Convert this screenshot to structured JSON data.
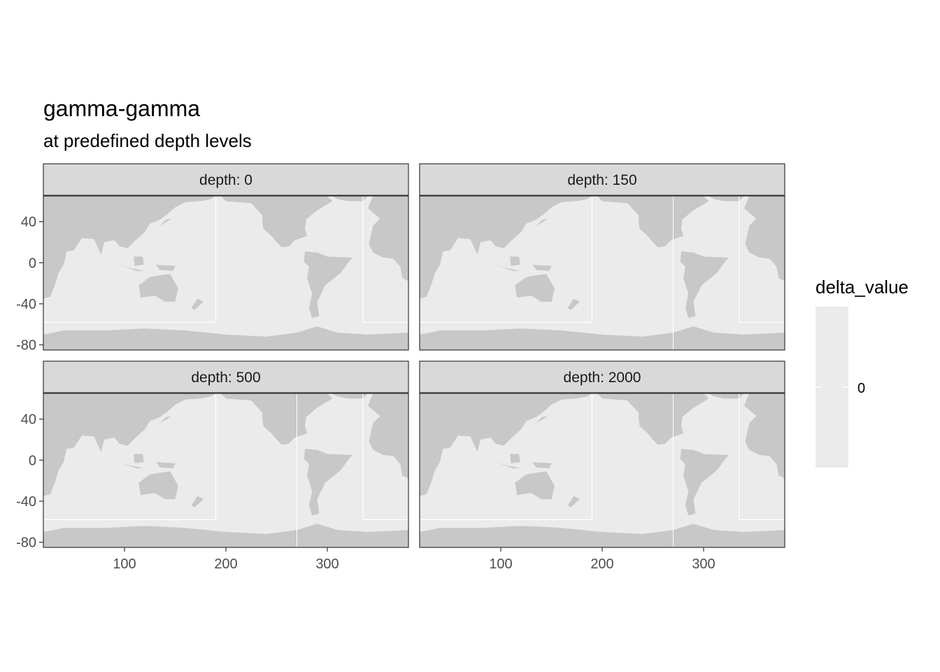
{
  "chart_data": {
    "type": "heatmap",
    "title": "gamma-gamma",
    "subtitle": "at predefined depth levels",
    "facet_var": "depth",
    "facets": [
      {
        "label": "depth: 0",
        "depth": 0
      },
      {
        "label": "depth: 150",
        "depth": 150
      },
      {
        "label": "depth: 500",
        "depth": 500
      },
      {
        "label": "depth: 2000",
        "depth": 2000
      }
    ],
    "xlabel": "",
    "ylabel": "",
    "xlim": [
      20,
      380
    ],
    "ylim": [
      -85,
      65
    ],
    "x_ticks": [
      100,
      200,
      300
    ],
    "x_tick_labels": [
      "100",
      "200",
      "300"
    ],
    "y_ticks": [
      40,
      0,
      -40,
      -80
    ],
    "y_tick_labels": [
      "40",
      "0",
      "-40",
      "-80"
    ],
    "fill_variable": "delta_value",
    "fill_values": [
      0
    ],
    "legend": {
      "title": "delta_value",
      "labels": [
        "0"
      ],
      "position": "right",
      "fill_color": "#ebebeb"
    },
    "colors": {
      "land": "#c8c8c8",
      "ocean_cell": "#ebebeb",
      "missing": "#ffffff",
      "strip_fill": "#d9d9d9",
      "panel_border": "#333333"
    },
    "grid": false
  }
}
